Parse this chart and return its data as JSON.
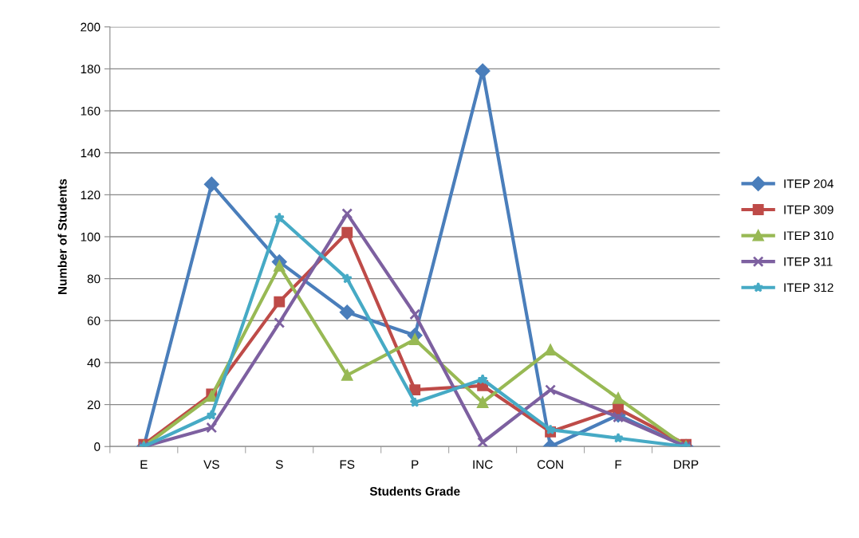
{
  "chart_data": {
    "type": "line",
    "xlabel": "Students Grade",
    "ylabel": "Number of Students",
    "categories": [
      "E",
      "VS",
      "S",
      "FS",
      "P",
      "INC",
      "CON",
      "F",
      "DRP"
    ],
    "series": [
      {
        "name": "ITEP 204",
        "color": "#4a7ebb",
        "marker": "diamond",
        "values": [
          0,
          125,
          88,
          64,
          53,
          179,
          0,
          15,
          0
        ]
      },
      {
        "name": "ITEP 309",
        "color": "#be4b48",
        "marker": "square",
        "values": [
          1,
          25,
          69,
          102,
          27,
          29,
          7,
          18,
          1
        ]
      },
      {
        "name": "ITEP 310",
        "color": "#98b954",
        "marker": "triangle",
        "values": [
          0,
          24,
          86,
          34,
          51,
          21,
          46,
          23,
          0
        ]
      },
      {
        "name": "ITEP 311",
        "color": "#7d60a0",
        "marker": "cross",
        "values": [
          0,
          9,
          59,
          111,
          63,
          2,
          27,
          14,
          0
        ]
      },
      {
        "name": "ITEP 312",
        "color": "#46aac5",
        "marker": "star",
        "values": [
          0,
          15,
          109,
          80,
          21,
          32,
          8,
          4,
          0
        ]
      }
    ],
    "ylim": [
      0,
      200
    ],
    "yticks": [
      0,
      20,
      40,
      60,
      80,
      100,
      120,
      140,
      160,
      180,
      200
    ],
    "grid": "y",
    "legend": "right",
    "line_style": "solid"
  }
}
